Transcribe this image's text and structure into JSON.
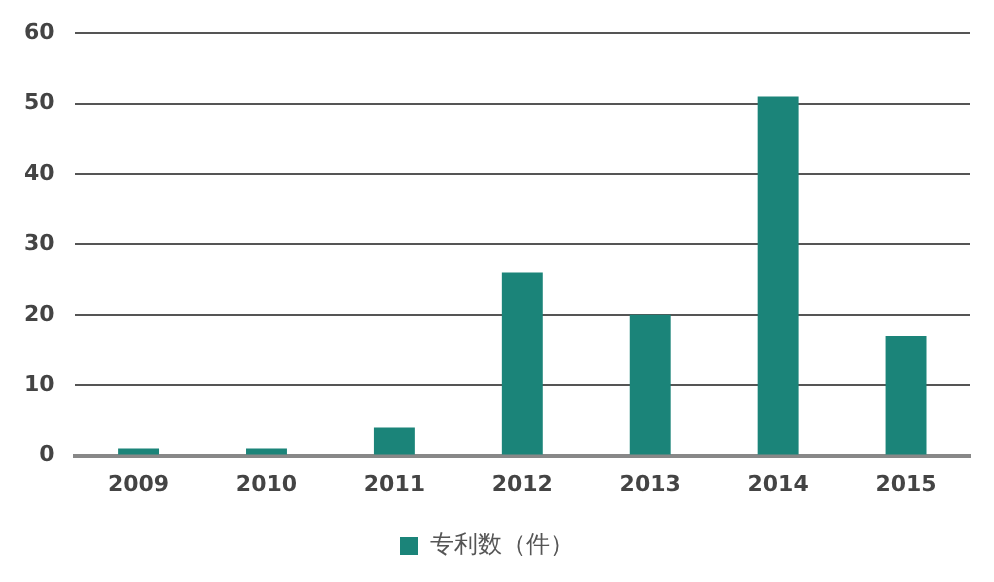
{
  "chart_data": {
    "type": "bar",
    "categories": [
      "2009",
      "2010",
      "2011",
      "2012",
      "2013",
      "2014",
      "2015"
    ],
    "series": [
      {
        "name": "专利数（件）",
        "color": "#1b8479",
        "values": [
          1,
          1,
          4,
          26,
          20,
          51,
          17
        ]
      }
    ],
    "ylim": [
      0,
      60
    ],
    "yticks": [
      0,
      10,
      20,
      30,
      40,
      50,
      60
    ],
    "grid": "y",
    "legend": "bottom"
  }
}
